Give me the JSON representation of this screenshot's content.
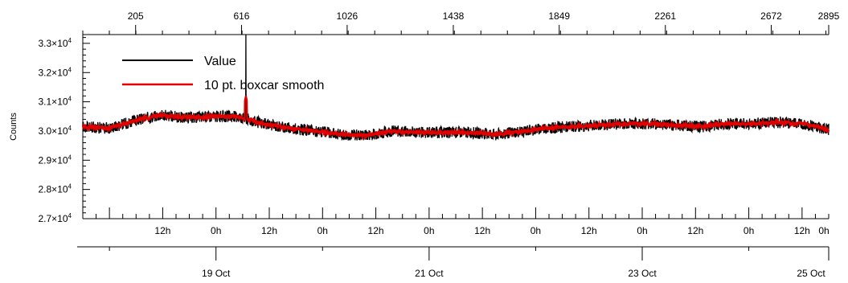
{
  "chart_data": {
    "type": "line",
    "title": "",
    "ylabel": "Counts",
    "xlabel": "",
    "ylim": [
      27000,
      33300
    ],
    "y_ticks": [
      {
        "value": 27000,
        "mant": "2.7",
        "exp": "4"
      },
      {
        "value": 28000,
        "mant": "2.8",
        "exp": "4"
      },
      {
        "value": 29000,
        "mant": "2.9",
        "exp": "4"
      },
      {
        "value": 30000,
        "mant": "3.0",
        "exp": "4"
      },
      {
        "value": 31000,
        "mant": "3.1",
        "exp": "4"
      },
      {
        "value": 32000,
        "mant": "3.2",
        "exp": "4"
      },
      {
        "value": 33000,
        "mant": "3.3",
        "exp": "4"
      }
    ],
    "x_range_hours": [
      0,
      168
    ],
    "x_start": "17 Oct 18:00",
    "x_hour_labels": [
      {
        "label": "12h",
        "hour": 18
      },
      {
        "label": "0h",
        "hour": 30
      },
      {
        "label": "12h",
        "hour": 42
      },
      {
        "label": "0h",
        "hour": 54
      },
      {
        "label": "12h",
        "hour": 66
      },
      {
        "label": "0h",
        "hour": 78
      },
      {
        "label": "12h",
        "hour": 90
      },
      {
        "label": "0h",
        "hour": 102
      },
      {
        "label": "12h",
        "hour": 114
      },
      {
        "label": "0h",
        "hour": 126
      },
      {
        "label": "12h",
        "hour": 138
      },
      {
        "label": "0h",
        "hour": 150
      },
      {
        "label": "12h",
        "hour": 162
      },
      {
        "label": "0h",
        "hour": 174
      }
    ],
    "x_date_labels": [
      {
        "label": "19 Oct",
        "hour": 30
      },
      {
        "label": "21 Oct",
        "hour": 78
      },
      {
        "label": "23 Oct",
        "hour": 126
      },
      {
        "label": "25 Oct",
        "hour": 174
      }
    ],
    "top_axis_range": [
      0,
      2895
    ],
    "top_axis_ticks": [
      "205",
      "616",
      "1026",
      "1438",
      "1849",
      "2261",
      "2672",
      "2895"
    ],
    "legend": [
      {
        "name": "Value",
        "color": "#000000"
      },
      {
        "name": "10 pt. boxcar smooth",
        "color": "#e00000"
      }
    ],
    "series": [
      {
        "name": "Value",
        "color": "#000000",
        "noise_amplitude": 200,
        "spike": {
          "index": 633,
          "value": 33300
        }
      },
      {
        "name": "10 pt. boxcar smooth",
        "color": "#e00000",
        "baseline_index": [
          0,
          100,
          200,
          300,
          400,
          500,
          600,
          640,
          700,
          800,
          900,
          1000,
          1100,
          1200,
          1300,
          1400,
          1500,
          1600,
          1700,
          1800,
          1900,
          2000,
          2100,
          2200,
          2300,
          2400,
          2500,
          2600,
          2700,
          2800,
          2895
        ],
        "baseline_counts": [
          30150,
          30100,
          30350,
          30550,
          30450,
          30500,
          30500,
          30400,
          30250,
          30100,
          30000,
          29880,
          29850,
          30000,
          29950,
          29950,
          29950,
          29880,
          29980,
          30100,
          30150,
          30200,
          30250,
          30250,
          30200,
          30150,
          30250,
          30250,
          30300,
          30250,
          30050
        ],
        "spike": {
          "index": 633,
          "value": 31200
        }
      }
    ],
    "grid": false,
    "legend_position": "top-left"
  }
}
